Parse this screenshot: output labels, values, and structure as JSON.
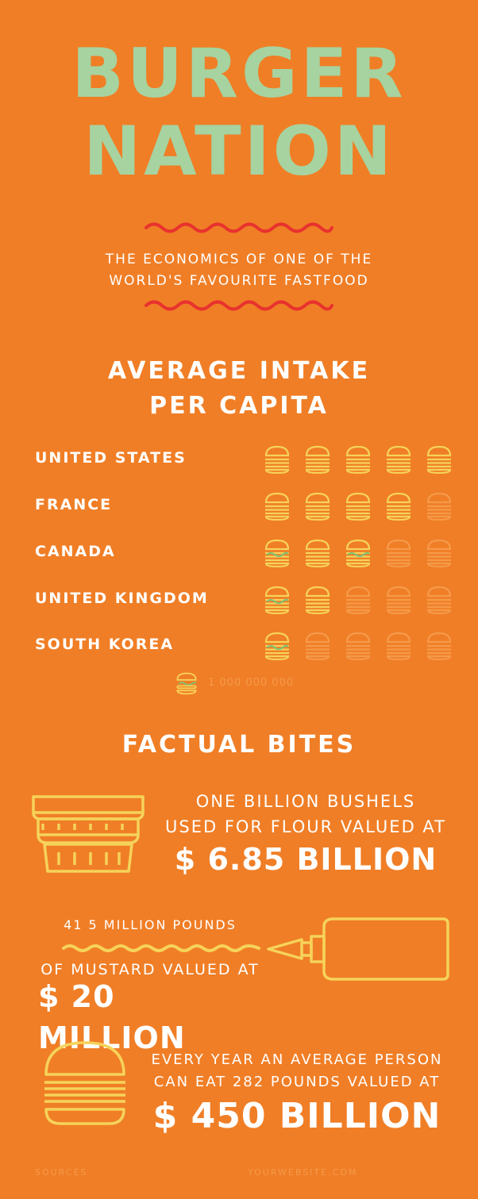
{
  "header": {
    "title_line1": "BURGER",
    "title_line2": "NATION",
    "subtitle_line1": "THE ECONOMICS OF ONE OF THE",
    "subtitle_line2": "WORLD'S FAVOURITE FASTFOOD"
  },
  "intake": {
    "title_line1": "AVERAGE INTAKE",
    "title_line2": "PER CAPITA",
    "rows": [
      {
        "country": "UNITED STATES",
        "filled": 5,
        "total": 5
      },
      {
        "country": "FRANCE",
        "filled": 4,
        "total": 5
      },
      {
        "country": "CANADA",
        "filled": 3,
        "total": 5
      },
      {
        "country": "UNITED KINGDOM",
        "filled": 2,
        "total": 5
      },
      {
        "country": "SOUTH KOREA",
        "filled": 1,
        "total": 5
      }
    ],
    "legend_value": "1 000 000 000"
  },
  "facts": {
    "title": "FACTUAL BITES",
    "fact1": {
      "line1": "ONE BILLION BUSHELS",
      "line2": "USED FOR FLOUR VALUED AT",
      "value": "$ 6.85 BILLION"
    },
    "fact2": {
      "line1": "41 5 MILLION POUNDS",
      "line2": "OF MUSTARD VALUED AT",
      "value": "$ 20 MILLION"
    },
    "fact3": {
      "line1": "EVERY YEAR AN AVERAGE PERSON",
      "line2": "CAN EAT 282 POUNDS VALUED AT",
      "value": "$ 450 BILLION"
    }
  },
  "footer": {
    "sources": "SOURCES",
    "website": "YOURWEBSITE.COM"
  },
  "colors": {
    "background": "#F07E26",
    "title": "#A6D3A0",
    "accent_red": "#E8322E",
    "icon_yellow": "#F6D35A",
    "lettuce": "#7CC276",
    "faded": "#F59A4A"
  }
}
